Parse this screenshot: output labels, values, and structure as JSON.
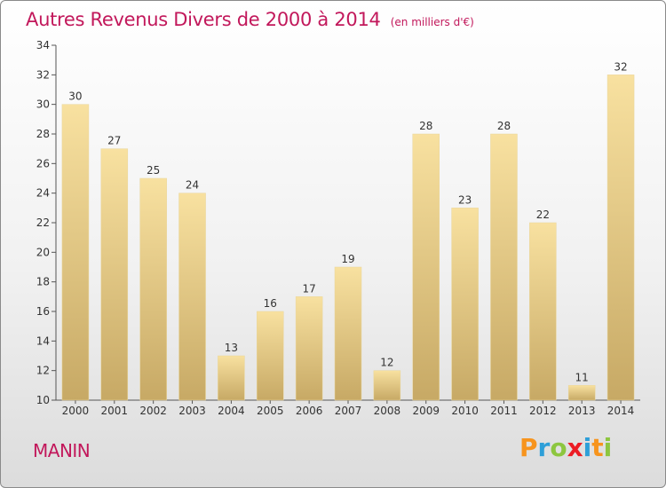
{
  "header": {
    "title": "Autres Revenus Divers de 2000 à 2014",
    "unit": "(en milliers d'€)"
  },
  "footer": {
    "commune": "MANIN",
    "brand": "Proxiti",
    "brand_letters": [
      {
        "char": "P",
        "color": "#f7941d"
      },
      {
        "char": "r",
        "color": "#2e9fd8"
      },
      {
        "char": "o",
        "color": "#8dc63f"
      },
      {
        "char": "x",
        "color": "#ec1c24"
      },
      {
        "char": "i",
        "color": "#2e9fd8"
      },
      {
        "char": "t",
        "color": "#f7941d"
      },
      {
        "char": "i",
        "color": "#8dc63f"
      }
    ]
  },
  "colors": {
    "accent": "#c2185b",
    "bar_light": "#f8e1a0",
    "bar_dark": "#c7a965",
    "axis": "#555555",
    "grid": "#e6e6e6"
  },
  "chart_data": {
    "type": "bar",
    "title": "Autres Revenus Divers de 2000 à 2014",
    "subtitle": "(en milliers d'€)",
    "xlabel": "",
    "ylabel": "",
    "categories": [
      "2000",
      "2001",
      "2002",
      "2003",
      "2004",
      "2005",
      "2006",
      "2007",
      "2008",
      "2009",
      "2010",
      "2011",
      "2012",
      "2013",
      "2014"
    ],
    "values": [
      30,
      27,
      25,
      24,
      13,
      16,
      17,
      19,
      12,
      28,
      23,
      28,
      22,
      11,
      32
    ],
    "ylim": [
      10,
      34
    ],
    "yticks": [
      10,
      12,
      14,
      16,
      18,
      20,
      22,
      24,
      26,
      28,
      30,
      32,
      34
    ],
    "data_labels": true,
    "grid": false
  }
}
